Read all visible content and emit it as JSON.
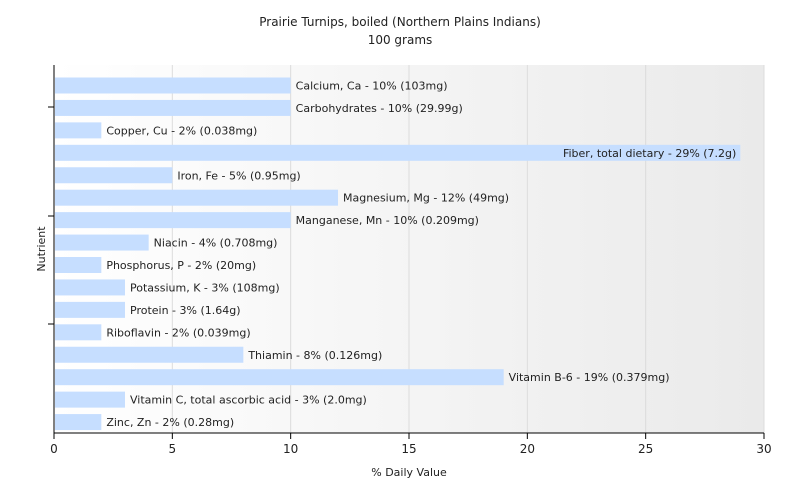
{
  "chart_data": {
    "type": "bar",
    "orientation": "horizontal",
    "title": "Prairie Turnips, boiled (Northern Plains Indians)",
    "subtitle": "100 grams",
    "xlabel": "% Daily Value",
    "ylabel": "Nutrient",
    "xlim": [
      0,
      30
    ],
    "xticks": [
      0,
      5,
      10,
      15,
      20,
      25,
      30
    ],
    "grid": "vertical",
    "colors": {
      "bar": "#c6deff",
      "plot_bg_right": "#eaeaea",
      "axis": "#000000"
    },
    "categories": [
      "Calcium, Ca",
      "Carbohydrates",
      "Copper, Cu",
      "Fiber, total dietary",
      "Iron, Fe",
      "Magnesium, Mg",
      "Manganese, Mn",
      "Niacin",
      "Phosphorus, P",
      "Potassium, K",
      "Protein",
      "Riboflavin",
      "Thiamin",
      "Vitamin B-6",
      "Vitamin C, total ascorbic acid",
      "Zinc, Zn"
    ],
    "values": [
      10,
      10,
      2,
      29,
      5,
      12,
      10,
      4,
      2,
      3,
      3,
      2,
      8,
      19,
      3,
      2
    ],
    "labels": [
      "Calcium, Ca - 10% (103mg)",
      "Carbohydrates - 10% (29.99g)",
      "Copper, Cu - 2% (0.038mg)",
      "Fiber, total dietary - 29% (7.2g)",
      "Iron, Fe - 5% (0.95mg)",
      "Magnesium, Mg - 12% (49mg)",
      "Manganese, Mn - 10% (0.209mg)",
      "Niacin - 4% (0.708mg)",
      "Phosphorus, P - 2% (20mg)",
      "Potassium, K - 3% (108mg)",
      "Protein - 3% (1.64g)",
      "Riboflavin - 2% (0.039mg)",
      "Thiamin - 8% (0.126mg)",
      "Vitamin B-6 - 19% (0.379mg)",
      "Vitamin C, total ascorbic acid - 3% (2.0mg)",
      "Zinc, Zn - 2% (0.28mg)"
    ]
  }
}
